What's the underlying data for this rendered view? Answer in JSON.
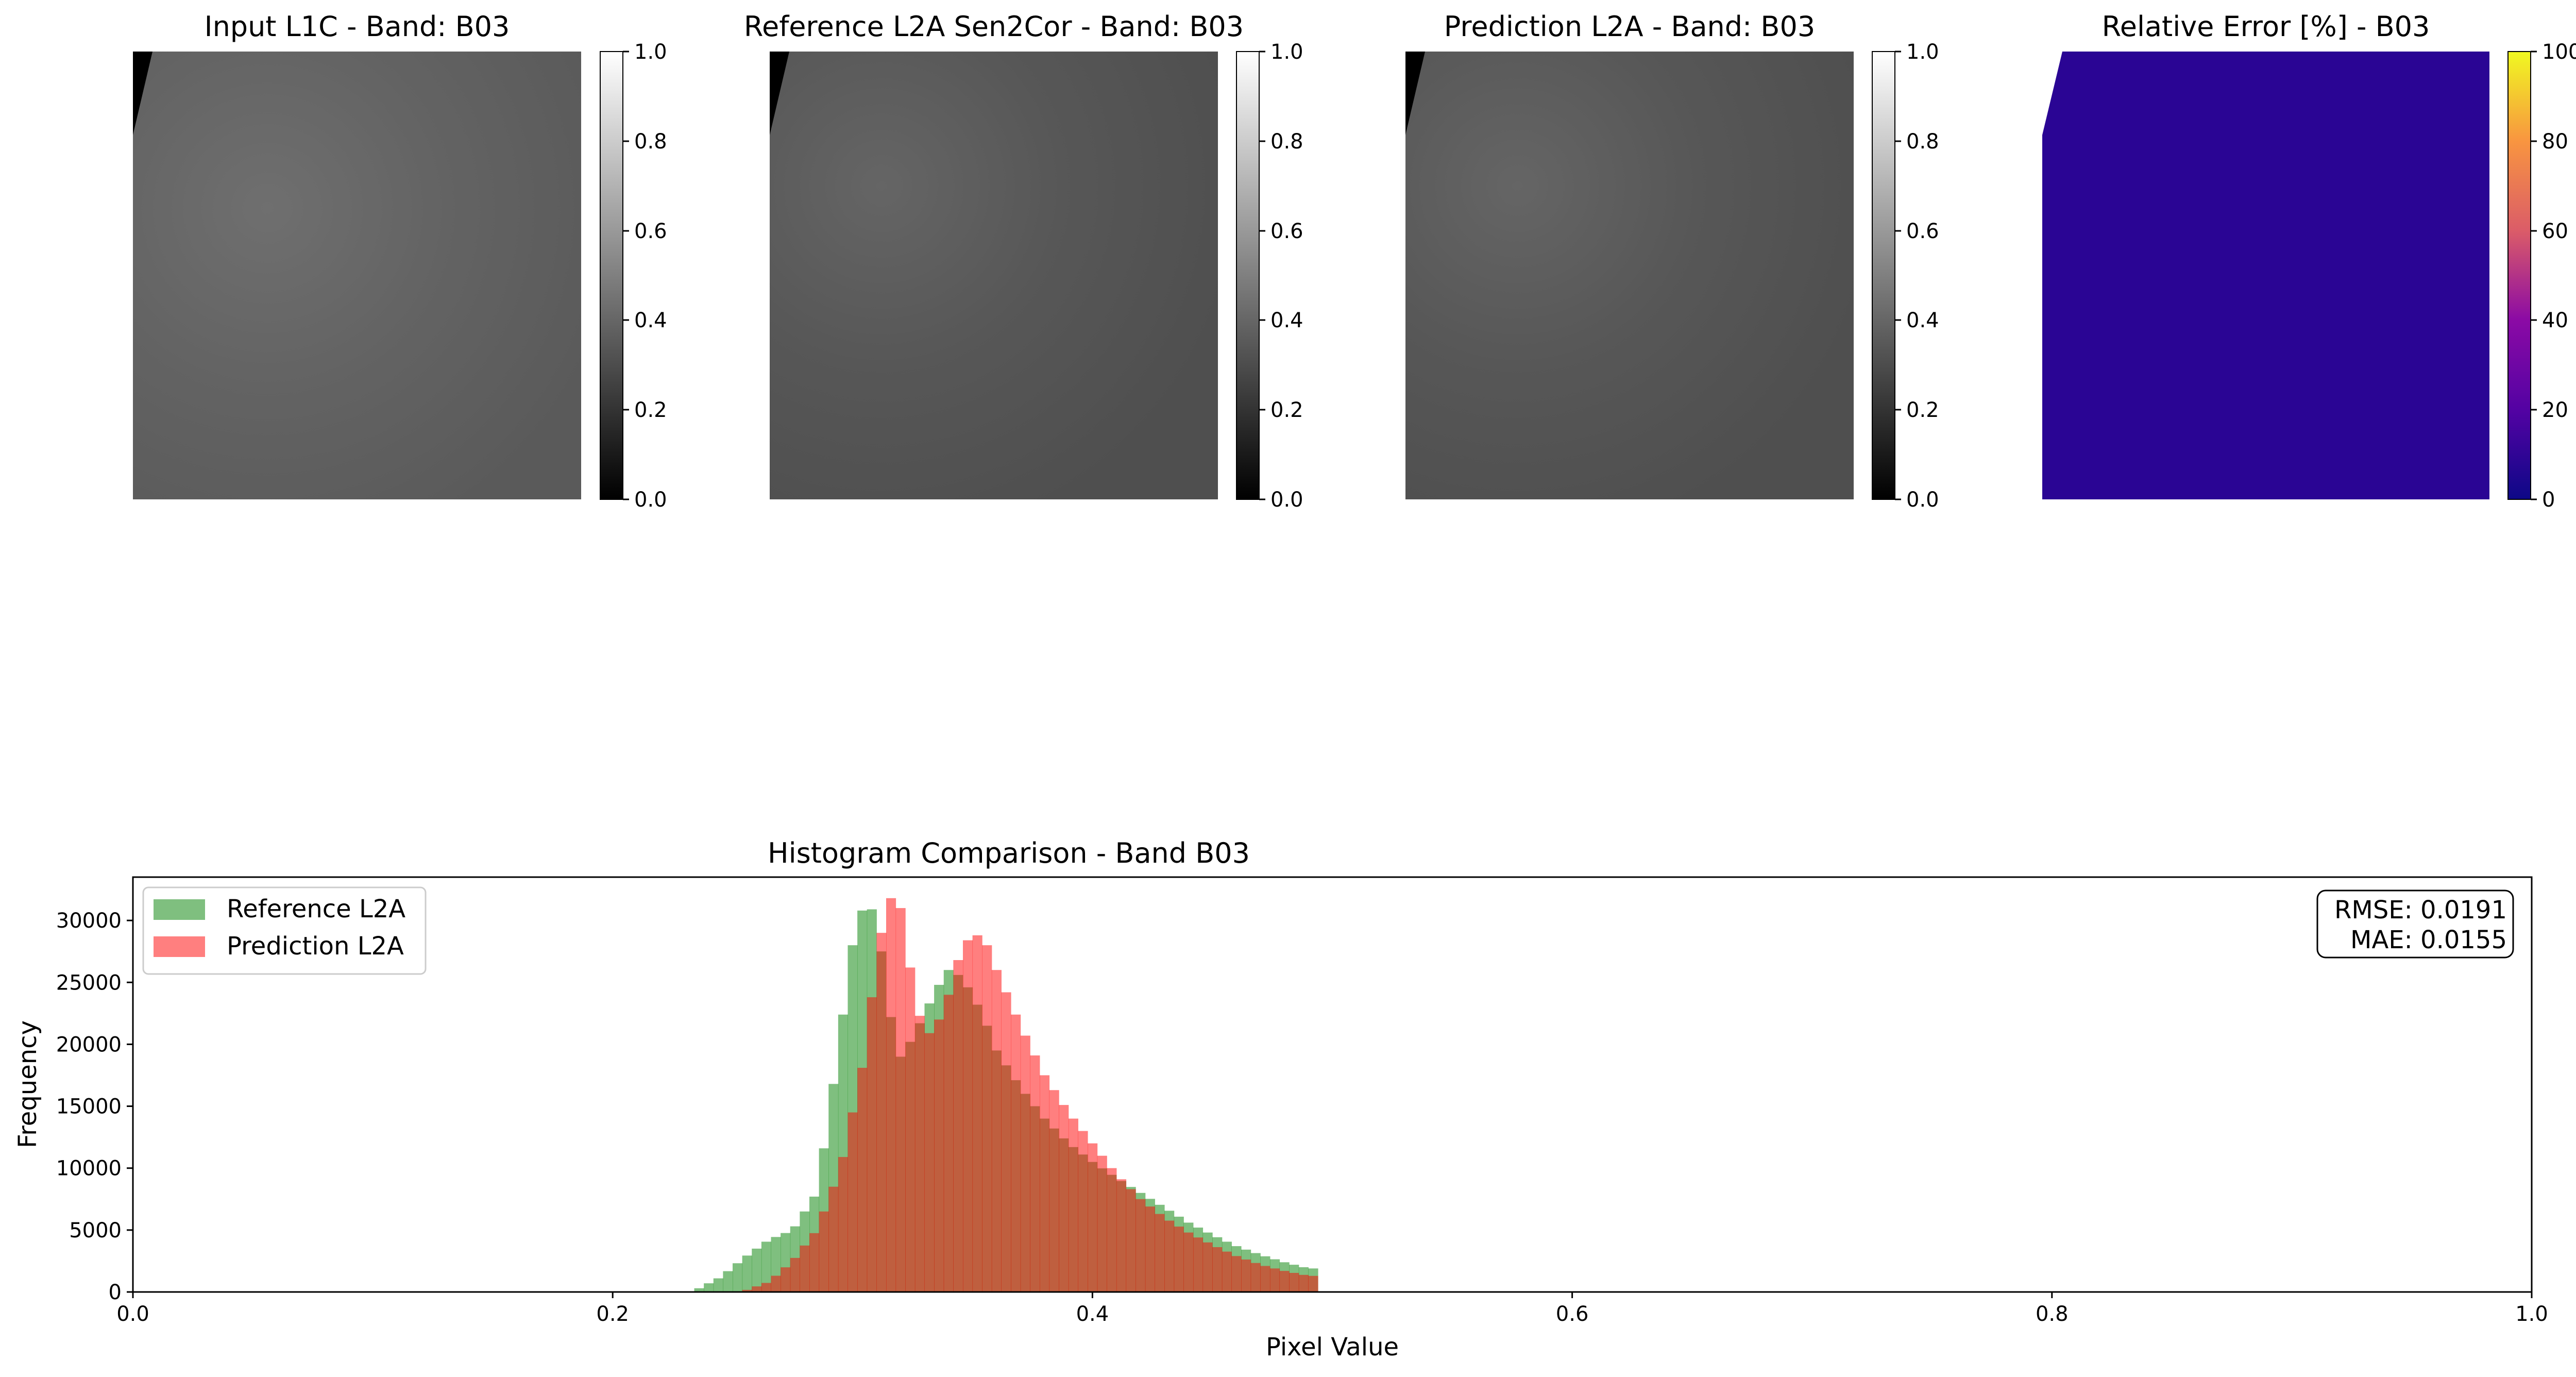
{
  "panels": [
    {
      "title": "Input L1C - Band: B03",
      "colormap": "gray",
      "colorbar_ticks": [
        "0.0",
        "0.2",
        "0.4",
        "0.6",
        "0.8",
        "1.0"
      ],
      "colorbar_range": [
        0,
        1
      ]
    },
    {
      "title": "Reference L2A Sen2Cor - Band: B03",
      "colormap": "gray",
      "colorbar_ticks": [
        "0.0",
        "0.2",
        "0.4",
        "0.6",
        "0.8",
        "1.0"
      ],
      "colorbar_range": [
        0,
        1
      ]
    },
    {
      "title": "Prediction L2A - Band: B03",
      "colormap": "gray",
      "colorbar_ticks": [
        "0.0",
        "0.2",
        "0.4",
        "0.6",
        "0.8",
        "1.0"
      ],
      "colorbar_range": [
        0,
        1
      ]
    },
    {
      "title": "Relative Error [%] - B03",
      "colormap": "plasma",
      "colorbar_ticks": [
        "0",
        "20",
        "40",
        "60",
        "80",
        "100"
      ],
      "colorbar_range": [
        0,
        100
      ]
    }
  ],
  "chart_data": {
    "type": "bar",
    "title": "Histogram Comparison - Band B03",
    "xlabel": "Pixel Value",
    "ylabel": "Frequency",
    "xlim": [
      0,
      1
    ],
    "ylim": [
      0,
      33500
    ],
    "xticks": [
      0,
      0.2,
      0.4,
      0.6,
      0.8,
      1.0
    ],
    "xtick_labels": [
      "0.0",
      "0.2",
      "0.4",
      "0.6",
      "0.8",
      "1.0"
    ],
    "yticks": [
      0,
      5000,
      10000,
      15000,
      20000,
      25000,
      30000
    ],
    "ytick_labels": [
      "0",
      "5000",
      "10000",
      "15000",
      "20000",
      "25000",
      "30000"
    ],
    "legend_position": "top-left",
    "metrics": [
      "RMSE: 0.0191",
      "MAE: 0.0155"
    ],
    "series": [
      {
        "name": "Reference L2A",
        "color": "#008000",
        "opacity": 0.5,
        "points": [
          [
            0.235,
            200
          ],
          [
            0.245,
            1200
          ],
          [
            0.255,
            2800
          ],
          [
            0.265,
            4200
          ],
          [
            0.275,
            5000
          ],
          [
            0.285,
            8000
          ],
          [
            0.29,
            14000
          ],
          [
            0.295,
            21000
          ],
          [
            0.3,
            28000
          ],
          [
            0.305,
            31500
          ],
          [
            0.31,
            30500
          ],
          [
            0.315,
            23000
          ],
          [
            0.32,
            19000
          ],
          [
            0.325,
            20500
          ],
          [
            0.33,
            22500
          ],
          [
            0.335,
            24500
          ],
          [
            0.34,
            26000
          ],
          [
            0.345,
            25500
          ],
          [
            0.35,
            24000
          ],
          [
            0.355,
            22000
          ],
          [
            0.36,
            19500
          ],
          [
            0.37,
            16500
          ],
          [
            0.38,
            14000
          ],
          [
            0.39,
            12000
          ],
          [
            0.4,
            10500
          ],
          [
            0.41,
            9200
          ],
          [
            0.42,
            8000
          ],
          [
            0.43,
            6800
          ],
          [
            0.44,
            5600
          ],
          [
            0.45,
            4600
          ],
          [
            0.46,
            3700
          ],
          [
            0.47,
            3000
          ],
          [
            0.48,
            2400
          ],
          [
            0.49,
            1900
          ]
        ]
      },
      {
        "name": "Prediction L2A",
        "color": "#ff0000",
        "opacity": 0.5,
        "points": [
          [
            0.255,
            100
          ],
          [
            0.265,
            800
          ],
          [
            0.275,
            2500
          ],
          [
            0.285,
            5000
          ],
          [
            0.295,
            10000
          ],
          [
            0.305,
            19000
          ],
          [
            0.31,
            27000
          ],
          [
            0.315,
            32000
          ],
          [
            0.32,
            31000
          ],
          [
            0.325,
            25000
          ],
          [
            0.33,
            20500
          ],
          [
            0.335,
            21500
          ],
          [
            0.34,
            24000
          ],
          [
            0.345,
            27500
          ],
          [
            0.35,
            29000
          ],
          [
            0.355,
            28500
          ],
          [
            0.36,
            26000
          ],
          [
            0.37,
            21500
          ],
          [
            0.38,
            17500
          ],
          [
            0.39,
            14500
          ],
          [
            0.4,
            12000
          ],
          [
            0.41,
            9500
          ],
          [
            0.42,
            7500
          ],
          [
            0.43,
            6000
          ],
          [
            0.44,
            4800
          ],
          [
            0.45,
            3800
          ],
          [
            0.46,
            2900
          ],
          [
            0.47,
            2200
          ],
          [
            0.48,
            1700
          ],
          [
            0.49,
            1300
          ]
        ]
      }
    ]
  }
}
